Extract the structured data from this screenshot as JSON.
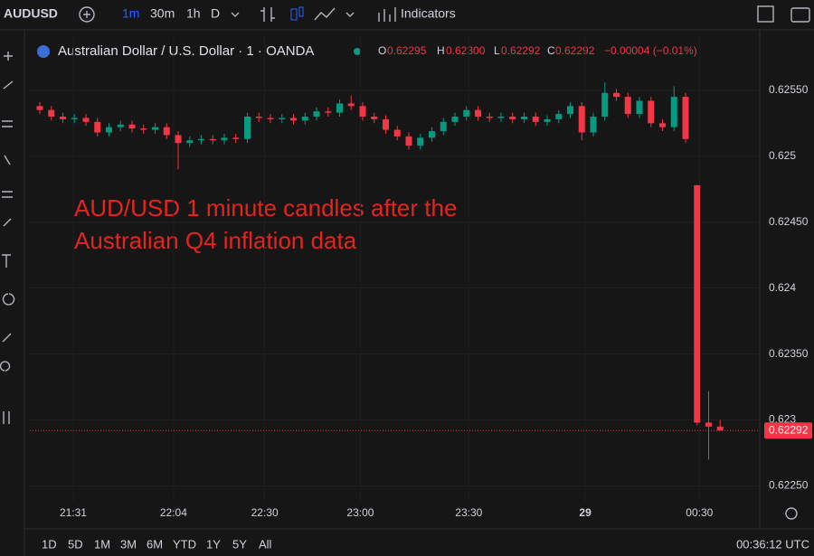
{
  "toolbar": {
    "symbol": "AUDUSD",
    "intervals": [
      "1m",
      "30m",
      "1h",
      "D"
    ],
    "indicators": "Indicators"
  },
  "legend": {
    "title": "Australian Dollar / U.S. Dollar · 1 · OANDA",
    "open_label": "O",
    "open": "0.62295",
    "high_label": "H",
    "high": "0.62300",
    "low_label": "L",
    "low": "0.62292",
    "close_label": "C",
    "close": "0.62292",
    "change": "−0.00004 (−0.01%)"
  },
  "ranges": [
    "1D",
    "5D",
    "1M",
    "3M",
    "6M",
    "YTD",
    "1Y",
    "5Y",
    "All"
  ],
  "clock": "00:36:12 UTC",
  "chart_data": {
    "type": "candlestick",
    "annotation": [
      "AUD/USD 1 minute candles after the",
      "Australian Q4 inflation data"
    ],
    "up_color": "#089981",
    "down_color": "#f23645",
    "ylim": [
      0.62238,
      0.62591
    ],
    "yticks": [
      {
        "value": 0.6225,
        "label": "0.62250"
      },
      0.623,
      {
        "value": 0.6235,
        "label": "0.62350"
      },
      0.624,
      {
        "value": 0.6245,
        "label": "0.62450"
      },
      0.625,
      {
        "value": 0.6255,
        "label": "0.62550"
      }
    ],
    "xticks": [
      {
        "value": 2.9,
        "label": "21:31"
      },
      {
        "value": 11.6,
        "label": "22:04"
      },
      {
        "value": 19.5,
        "label": "22:30"
      },
      {
        "value": 27.8,
        "label": "23:00"
      },
      {
        "value": 37.2,
        "label": "23:30"
      },
      {
        "value": 47.3,
        "label": "29"
      },
      {
        "value": 57.2,
        "label": "00:30"
      }
    ],
    "last_price": 0.62292,
    "open": [
      0.62538,
      0.62535,
      0.6253,
      0.62528,
      0.62529,
      0.62526,
      0.62518,
      0.62522,
      0.62524,
      0.62521,
      0.6252,
      0.62522,
      0.62516,
      0.6251,
      0.62512,
      0.62513,
      0.62512,
      0.62514,
      0.62513,
      0.6253,
      0.62529,
      0.62528,
      0.62529,
      0.62527,
      0.6253,
      0.62534,
      0.62533,
      0.6254,
      0.62538,
      0.6253,
      0.62528,
      0.6252,
      0.62515,
      0.62508,
      0.62514,
      0.62519,
      0.62526,
      0.6253,
      0.62535,
      0.6253,
      0.62529,
      0.6253,
      0.62528,
      0.6253,
      0.62526,
      0.62528,
      0.62532,
      0.62538,
      0.62518,
      0.6253,
      0.62548,
      0.62545,
      0.62532,
      0.62542,
      0.62525,
      0.62522,
      0.62545,
      0.62478,
      0.62298,
      0.62295
    ],
    "high": [
      0.62541,
      0.62538,
      0.62533,
      0.62532,
      0.62532,
      0.62529,
      0.62525,
      0.62527,
      0.62527,
      0.62524,
      0.62525,
      0.62525,
      0.62519,
      0.62515,
      0.62516,
      0.62516,
      0.62517,
      0.62517,
      0.62533,
      0.62533,
      0.62532,
      0.62532,
      0.62532,
      0.62533,
      0.62537,
      0.62537,
      0.62543,
      0.62546,
      0.62541,
      0.62533,
      0.62531,
      0.62523,
      0.62518,
      0.62517,
      0.62522,
      0.62529,
      0.62533,
      0.62538,
      0.62538,
      0.62533,
      0.62533,
      0.62533,
      0.62533,
      0.62533,
      0.62531,
      0.62535,
      0.62541,
      0.62541,
      0.62533,
      0.62556,
      0.62551,
      0.62548,
      0.62545,
      0.62545,
      0.62528,
      0.62553,
      0.62548,
      0.62478,
      0.62322,
      0.623
    ],
    "low": [
      0.62532,
      0.62527,
      0.62525,
      0.62525,
      0.62523,
      0.62515,
      0.62515,
      0.62519,
      0.62518,
      0.62517,
      0.62517,
      0.62513,
      0.6249,
      0.62507,
      0.62509,
      0.62509,
      0.62509,
      0.6251,
      0.6251,
      0.62526,
      0.62525,
      0.62525,
      0.62524,
      0.62524,
      0.62527,
      0.6253,
      0.6253,
      0.62535,
      0.62527,
      0.62525,
      0.62517,
      0.62512,
      0.62505,
      0.62505,
      0.62511,
      0.62516,
      0.62523,
      0.62527,
      0.62527,
      0.62526,
      0.62526,
      0.62525,
      0.62525,
      0.62523,
      0.62523,
      0.62525,
      0.62529,
      0.62512,
      0.62515,
      0.62527,
      0.62542,
      0.62529,
      0.62529,
      0.62522,
      0.62519,
      0.62519,
      0.6251,
      0.62296,
      0.6227,
      0.62292
    ],
    "close": [
      0.62535,
      0.6253,
      0.62528,
      0.62529,
      0.62526,
      0.62518,
      0.62522,
      0.62524,
      0.62521,
      0.6252,
      0.62522,
      0.62516,
      0.6251,
      0.62512,
      0.62513,
      0.62512,
      0.62514,
      0.62513,
      0.6253,
      0.62529,
      0.62528,
      0.62529,
      0.62527,
      0.6253,
      0.62534,
      0.62533,
      0.6254,
      0.62538,
      0.6253,
      0.62528,
      0.6252,
      0.62515,
      0.62508,
      0.62514,
      0.62519,
      0.62526,
      0.6253,
      0.62535,
      0.6253,
      0.62529,
      0.6253,
      0.62528,
      0.6253,
      0.62526,
      0.62528,
      0.62532,
      0.62538,
      0.62518,
      0.6253,
      0.62548,
      0.62545,
      0.62532,
      0.62542,
      0.62525,
      0.62522,
      0.62545,
      0.62513,
      0.62298,
      0.62295,
      0.62292
    ]
  }
}
